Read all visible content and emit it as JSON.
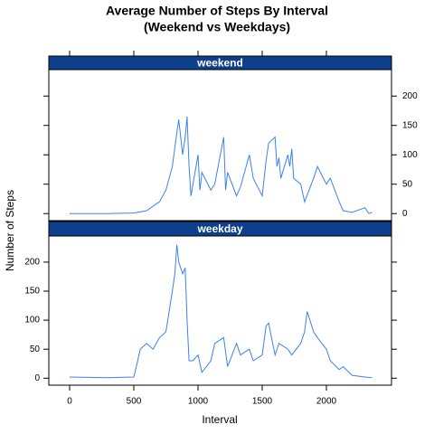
{
  "title": [
    "Average Number of Steps By Interval",
    "(Weekend vs Weekdays)"
  ],
  "xlabel": "Interval",
  "ylabel": "Number of Steps",
  "xlim": [
    -162,
    2507
  ],
  "xticks": [
    0,
    500,
    1000,
    1500,
    2000
  ],
  "chart_data": [
    {
      "type": "line",
      "strip": "weekend",
      "color": "#3b82f0",
      "ylim": [
        -12,
        245
      ],
      "yticks": [
        0,
        50,
        100,
        150,
        200
      ],
      "x": [
        0,
        300,
        500,
        600,
        700,
        750,
        800,
        830,
        850,
        880,
        900,
        915,
        930,
        945,
        1000,
        1015,
        1030,
        1100,
        1130,
        1200,
        1215,
        1230,
        1300,
        1330,
        1400,
        1430,
        1500,
        1530,
        1550,
        1600,
        1615,
        1630,
        1645,
        1700,
        1715,
        1730,
        1745,
        1800,
        1830,
        1900,
        1930,
        2000,
        2030,
        2100,
        2130,
        2200,
        2300,
        2330,
        2355
      ],
      "values": [
        0,
        0,
        1,
        5,
        20,
        40,
        80,
        130,
        160,
        100,
        130,
        165,
        80,
        30,
        100,
        40,
        70,
        40,
        50,
        130,
        40,
        70,
        30,
        45,
        100,
        60,
        30,
        90,
        120,
        130,
        80,
        95,
        60,
        100,
        80,
        110,
        60,
        50,
        20,
        60,
        80,
        50,
        60,
        20,
        5,
        2,
        10,
        0,
        2
      ]
    },
    {
      "type": "line",
      "strip": "weekday",
      "color": "#3b82f0",
      "ylim": [
        -12,
        245
      ],
      "yticks": [
        0,
        50,
        100,
        150,
        200
      ],
      "x": [
        0,
        300,
        500,
        520,
        550,
        600,
        650,
        700,
        750,
        800,
        820,
        835,
        850,
        880,
        900,
        915,
        930,
        960,
        1000,
        1030,
        1100,
        1130,
        1200,
        1230,
        1300,
        1330,
        1400,
        1430,
        1500,
        1530,
        1550,
        1600,
        1630,
        1700,
        1730,
        1800,
        1830,
        1850,
        1900,
        1930,
        2000,
        2030,
        2100,
        2130,
        2200,
        2300,
        2355
      ],
      "values": [
        2,
        1,
        2,
        20,
        50,
        60,
        50,
        70,
        80,
        150,
        180,
        230,
        200,
        180,
        190,
        100,
        30,
        30,
        40,
        10,
        30,
        60,
        70,
        20,
        60,
        40,
        50,
        30,
        40,
        90,
        95,
        40,
        60,
        50,
        40,
        60,
        80,
        115,
        80,
        70,
        50,
        30,
        15,
        20,
        5,
        2,
        1
      ]
    }
  ]
}
